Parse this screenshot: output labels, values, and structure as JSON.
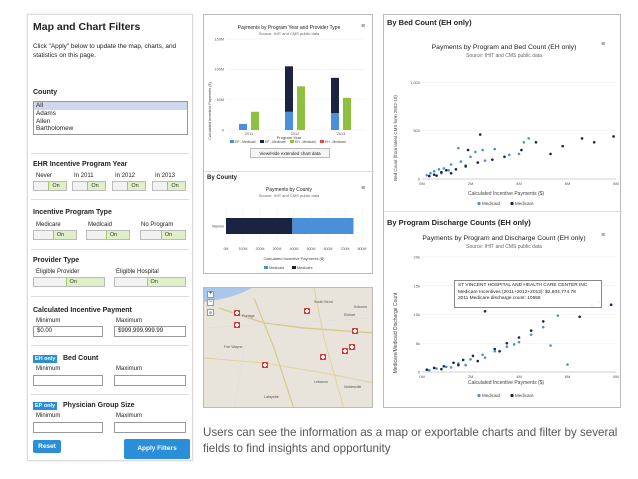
{
  "filters": {
    "title": "Map and Chart Filters",
    "description": "Click \"Apply\" below to update the map, charts, and statistics on this page.",
    "county": {
      "label": "County",
      "options": [
        "All",
        "Adams",
        "Allen",
        "Bartholomew"
      ],
      "selected": "All"
    },
    "program_year": {
      "label": "EHR Incentive Program Year",
      "toggles": [
        {
          "label": "Never",
          "state": "On"
        },
        {
          "label": "In 2011",
          "state": "On"
        },
        {
          "label": "In 2012",
          "state": "On"
        },
        {
          "label": "In 2013",
          "state": "On"
        }
      ]
    },
    "program_type": {
      "label": "Incentive Program Type",
      "toggles": [
        {
          "label": "Medicare",
          "state": "On"
        },
        {
          "label": "Medicaid",
          "state": "On"
        },
        {
          "label": "No Program",
          "state": "On"
        }
      ]
    },
    "provider_type": {
      "label": "Provider Type",
      "toggles": [
        {
          "label": "Eligible Provider",
          "state": "On"
        },
        {
          "label": "Eligible Hospital",
          "state": "On"
        }
      ]
    },
    "payment": {
      "label": "Calculated Incentive Payment",
      "min_label": "Minimum",
      "max_label": "Maximum",
      "min_value": "$0.00",
      "max_value": "$999,999,999.99"
    },
    "bed_count": {
      "badge": "EH only",
      "label": "Bed Count",
      "min_label": "Minimum",
      "max_label": "Maximum"
    },
    "group_size": {
      "badge": "EP only",
      "label": "Physician Group Size",
      "min_label": "Minimum",
      "max_label": "Maximum"
    },
    "reset_label": "Reset",
    "apply_label": "Apply Filters"
  },
  "year_chart": {
    "title": "Payments by Program Year and Provider Type",
    "subtitle": "Source: IHIT and CMS public data",
    "xlabel": "Program Year",
    "ylabel": "Calculated Incentive Payments ($)",
    "button": "View/Hide extended chart data",
    "colors": {
      "ep_medicaid": "#4a90d9",
      "ep_medicare": "#1a2340",
      "eh_medicaid": "#8fbf3f",
      "eh_medicare": "#e9484b"
    }
  },
  "county_section": {
    "label": "By County"
  },
  "county_chart": {
    "title": "Payments by County",
    "subtitle": "Source: IHIT and CMS public data",
    "xlabel": "Calculated Incentive Payments ($)",
    "colors": {
      "medicaid": "#4a90d9",
      "medicare": "#1a2340"
    }
  },
  "bed_section": {
    "label": "By Bed Count (EH only)"
  },
  "bed_chart": {
    "title": "Payments by Program and Bed Count (EH only)",
    "subtitle": "Source: IHIT and CMS public data",
    "ylabel": "Bed Count (from latest CMS form 2552-10)",
    "xlabel": "Calculated Incentive Payments ($)",
    "colors": {
      "medicaid": "#4a90d9",
      "medicare": "#1a2340"
    }
  },
  "discharge_section": {
    "label": "By Program Discharge Counts (EH only)"
  },
  "discharge_chart": {
    "title": "Payments by Program and Discharge Count (EH only)",
    "subtitle": "Source: IHIT and CMS public data",
    "ylabel": "Medicare/Medicaid Discharge Count",
    "xlabel": "Calculated Incentive Payments ($)",
    "tooltip": {
      "title": "ST VINCENT HOSPITAL AND HEALTH CARE CENTER INC",
      "line1": "Medicare Incentives (2011+2012+2013): $2,604,774.78",
      "line2": "2011 Medicare discharge count: 10558"
    },
    "colors": {
      "medicaid": "#4a90d9",
      "medicare": "#1a2340"
    }
  },
  "map": {
    "labels": [
      "Portage",
      "South Bend",
      "Elkhart",
      "Lafayette",
      "Lebanon",
      "Noblesville",
      "Kokomo",
      "Fort Wayne"
    ]
  },
  "caption": "Users can see the information as a map or exportable charts and filter by several fields to find insights and opportunity",
  "chart_data": [
    {
      "type": "bar",
      "title": "Payments by Program Year and Provider Type",
      "subtitle": "Source: IHIT and CMS public data",
      "xlabel": "Program Year",
      "ylabel": "Calculated Incentive Payments ($)",
      "categories": [
        "2011",
        "2012",
        "2013"
      ],
      "yticks": [
        "0",
        "50M",
        "100M",
        "150M"
      ],
      "ylim": [
        0,
        150000000
      ],
      "series": [
        {
          "name": "EP - Medicaid",
          "values": [
            10000000,
            30000000,
            28000000
          ],
          "stack": "a"
        },
        {
          "name": "EP - Medicare",
          "values": [
            0,
            75000000,
            58000000
          ],
          "stack": "a"
        },
        {
          "name": "EH - Medicaid",
          "values": [
            30000000,
            72000000,
            53000000
          ],
          "stack": "b"
        },
        {
          "name": "EH - Medicare",
          "values": [
            0,
            0,
            0
          ],
          "stack": "b"
        }
      ],
      "legend": "bottom"
    },
    {
      "type": "bar",
      "orientation": "horizontal",
      "title": "Payments by County",
      "subtitle": "Source: IHIT and CMS public data",
      "xlabel": "Calculated Incentive Payments ($)",
      "categories": [
        "Marion"
      ],
      "xticks": [
        "0M",
        "100M",
        "200M",
        "300M",
        "400M",
        "500M",
        "600M",
        "700M",
        "800M"
      ],
      "xlim": [
        0,
        800000000
      ],
      "series": [
        {
          "name": "Medicaid",
          "values": [
            360000000
          ]
        },
        {
          "name": "Medicare",
          "values": [
            390000000
          ]
        }
      ],
      "legend": "bottom"
    },
    {
      "type": "scatter",
      "title": "Payments by Program and Bed Count (EH only)",
      "subtitle": "Source: IHIT and CMS public data",
      "xlabel": "Calculated Incentive Payments ($)",
      "ylabel": "Bed Count (from latest CMS form 2552-10)",
      "xticks": [
        "0M",
        "2M",
        "4M",
        "6M",
        "8M"
      ],
      "yticks": [
        "0",
        "500",
        "1,000"
      ],
      "xlim": [
        0,
        8000000
      ],
      "ylim": [
        0,
        1200
      ],
      "legend": "bottom",
      "series": [
        {
          "name": "Medicaid",
          "points": [
            [
              200000,
              40
            ],
            [
              350000,
              60
            ],
            [
              500000,
              80
            ],
            [
              700000,
              100
            ],
            [
              900000,
              110
            ],
            [
              1200000,
              150
            ],
            [
              1600000,
              180
            ],
            [
              2000000,
              230
            ],
            [
              2200000,
              280
            ],
            [
              1500000,
              320
            ],
            [
              2500000,
              300
            ],
            [
              3000000,
              310
            ],
            [
              4400000,
              420
            ],
            [
              4200000,
              380
            ],
            [
              3600000,
              250
            ],
            [
              800000,
              60
            ],
            [
              1100000,
              90
            ],
            [
              1800000,
              140
            ],
            [
              2600000,
              190
            ],
            [
              4000000,
              260
            ]
          ]
        },
        {
          "name": "Medicare",
          "points": [
            [
              300000,
              30
            ],
            [
              500000,
              45
            ],
            [
              800000,
              70
            ],
            [
              1000000,
              90
            ],
            [
              1400000,
              100
            ],
            [
              1800000,
              130
            ],
            [
              2300000,
              170
            ],
            [
              2900000,
              200
            ],
            [
              3400000,
              230
            ],
            [
              4100000,
              300
            ],
            [
              4700000,
              380
            ],
            [
              5300000,
              260
            ],
            [
              5800000,
              340
            ],
            [
              6600000,
              420
            ],
            [
              7100000,
              380
            ],
            [
              7900000,
              440
            ],
            [
              1900000,
              300
            ],
            [
              2400000,
              460
            ],
            [
              600000,
              35
            ],
            [
              1200000,
              60
            ]
          ]
        }
      ]
    },
    {
      "type": "scatter",
      "title": "Payments by Program and Discharge Count (EH only)",
      "subtitle": "Source: IHIT and CMS public data",
      "xlabel": "Calculated Incentive Payments ($)",
      "ylabel": "Medicare/Medicaid Discharge Count",
      "xticks": [
        "0M",
        "2M",
        "4M",
        "6M",
        "8M"
      ],
      "yticks": [
        "0",
        "5k",
        "10k",
        "15k",
        "20k"
      ],
      "xlim": [
        0,
        8000000
      ],
      "ylim": [
        0,
        20000
      ],
      "legend": "bottom",
      "series": [
        {
          "name": "Medicaid",
          "points": [
            [
              300000,
              300
            ],
            [
              600000,
              600
            ],
            [
              1000000,
              900
            ],
            [
              1500000,
              1500
            ],
            [
              2000000,
              2200
            ],
            [
              2500000,
              3000
            ],
            [
              3000000,
              3600
            ],
            [
              3500000,
              4400
            ],
            [
              4000000,
              5200
            ],
            [
              4500000,
              6500
            ],
            [
              5000000,
              7800
            ],
            [
              5300000,
              4600
            ],
            [
              5600000,
              9800
            ],
            [
              6000000,
              1300
            ],
            [
              1200000,
              800
            ],
            [
              1800000,
              1200
            ],
            [
              2600000,
              2500
            ],
            [
              3800000,
              4800
            ]
          ]
        },
        {
          "name": "Medicare",
          "points": [
            [
              200000,
              400
            ],
            [
              500000,
              700
            ],
            [
              900000,
              1000
            ],
            [
              1300000,
              1600
            ],
            [
              1700000,
              2100
            ],
            [
              2100000,
              2800
            ],
            [
              2600000,
              10558
            ],
            [
              3000000,
              4000
            ],
            [
              3500000,
              5000
            ],
            [
              4000000,
              6000
            ],
            [
              4500000,
              7200
            ],
            [
              5000000,
              8800
            ],
            [
              6500000,
              9600
            ],
            [
              7000000,
              11600
            ],
            [
              7300000,
              12200
            ],
            [
              7800000,
              11700
            ],
            [
              800000,
              500
            ],
            [
              1500000,
              1200
            ],
            [
              2300000,
              1900
            ],
            [
              3200000,
              3600
            ]
          ]
        }
      ]
    }
  ]
}
